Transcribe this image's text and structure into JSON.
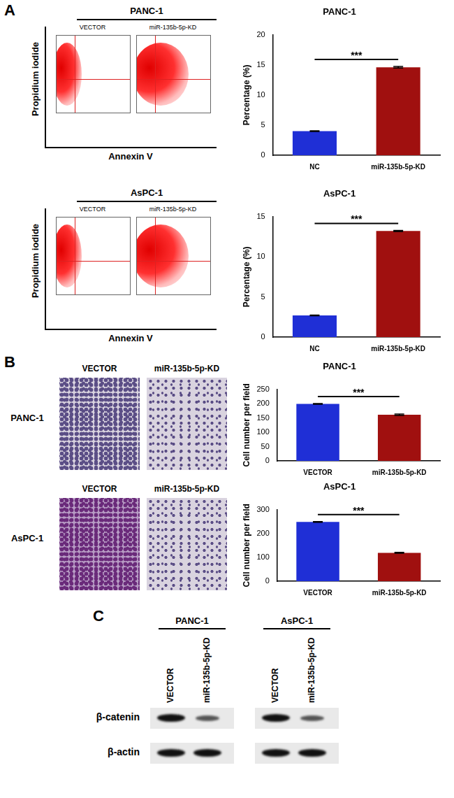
{
  "panels": {
    "A": {
      "letter": "A",
      "flow": [
        {
          "cell_line": "PANC-1",
          "conditions": [
            "VECTOR",
            "miR-135b-5p-KD"
          ],
          "y_label": "Propidium iodide",
          "x_label": "Annexin V"
        },
        {
          "cell_line": "AsPC-1",
          "conditions": [
            "VECTOR",
            "miR-135b-5p-KD"
          ],
          "y_label": "Propidium iodide",
          "x_label": "Annexin V"
        }
      ]
    },
    "B": {
      "letter": "B",
      "rows": [
        "PANC-1",
        "AsPC-1"
      ],
      "columns": [
        "VECTOR",
        "miR-135b-5p-KD"
      ]
    },
    "C": {
      "letter": "C",
      "groups": [
        "PANC-1",
        "AsPC-1"
      ],
      "lanes": [
        "VECTOR",
        "miR-135b-5p-KD"
      ],
      "proteins": [
        "β-catenin",
        "β-actin"
      ]
    }
  },
  "chart_data": [
    {
      "type": "bar",
      "title": "PANC-1",
      "categories": [
        "NC",
        "miR-135b-5p-KD"
      ],
      "values": [
        4.0,
        14.6
      ],
      "errors": [
        0.05,
        0.12
      ],
      "colors": [
        "#1f2fd6",
        "#a0100f"
      ],
      "y_label": "Percentage (%)",
      "ylim": [
        0,
        20
      ],
      "yticks": [
        0,
        5,
        10,
        15,
        20
      ],
      "annotation": "***",
      "grid": false
    },
    {
      "type": "bar",
      "title": "AsPC-1",
      "categories": [
        "NC",
        "miR-135b-5p-KD"
      ],
      "values": [
        2.7,
        13.2
      ],
      "errors": [
        0.04,
        0.06
      ],
      "colors": [
        "#1f2fd6",
        "#a0100f"
      ],
      "y_label": "Percentage (%)",
      "ylim": [
        0,
        15
      ],
      "yticks": [
        0,
        5,
        10,
        15
      ],
      "annotation": "***",
      "grid": false
    },
    {
      "type": "bar",
      "title": "PANC-1",
      "categories": [
        "VECTOR",
        "miR-135b-5p-KD"
      ],
      "values": [
        199,
        161
      ],
      "errors": [
        1.5,
        2.5
      ],
      "colors": [
        "#1f2fd6",
        "#a0100f"
      ],
      "y_label": "Cell number per field",
      "ylim": [
        0,
        250
      ],
      "yticks": [
        0,
        50,
        100,
        150,
        200,
        250
      ],
      "annotation": "***",
      "grid": false
    },
    {
      "type": "bar",
      "title": "AsPC-1",
      "categories": [
        "VECTOR",
        "miR-135b-5p-KD"
      ],
      "values": [
        248,
        119
      ],
      "errors": [
        1.5,
        1.5
      ],
      "colors": [
        "#1f2fd6",
        "#a0100f"
      ],
      "y_label": "Cell number per field",
      "ylim": [
        0,
        300
      ],
      "yticks": [
        0,
        100,
        200,
        300
      ],
      "annotation": "***",
      "grid": false
    }
  ]
}
